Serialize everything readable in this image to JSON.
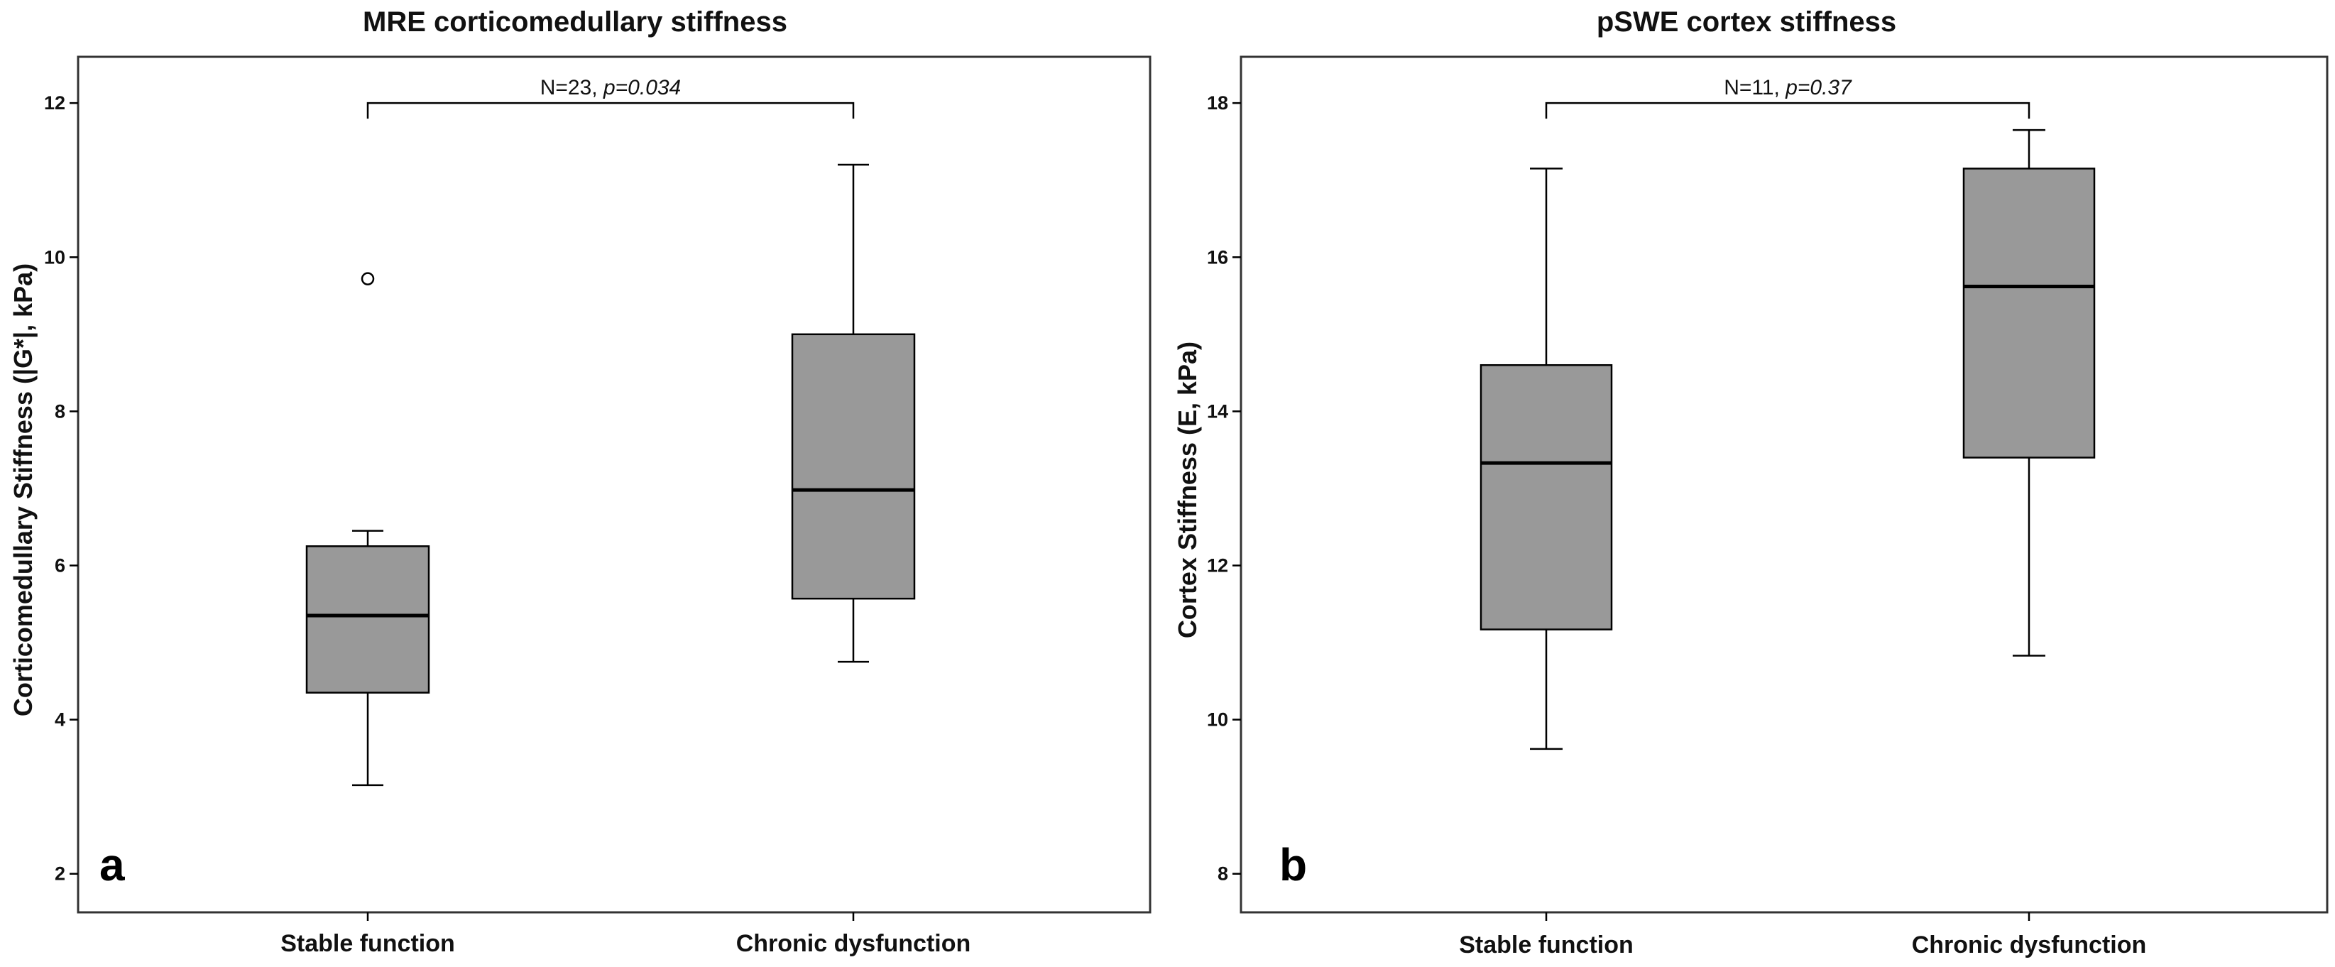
{
  "chart_data": [
    {
      "type": "boxplot",
      "panel_label": "a",
      "title": "MRE corticomedullary stiffness",
      "ylabel": "Corticomedullary Stiffness (|G*|, kPa)",
      "xlabel": "",
      "ylim": [
        1.5,
        12.6
      ],
      "yticks": [
        2,
        4,
        6,
        8,
        10,
        12
      ],
      "categories": [
        "Stable function",
        "Chronic dysfunction"
      ],
      "boxes": [
        {
          "category": "Stable function",
          "whisker_low": 3.15,
          "q1": 4.35,
          "median": 5.35,
          "q3": 6.25,
          "whisker_high": 6.45,
          "outliers": [
            9.72
          ]
        },
        {
          "category": "Chronic dysfunction",
          "whisker_low": 4.75,
          "q1": 5.57,
          "median": 6.98,
          "q3": 9.0,
          "whisker_high": 11.2,
          "outliers": []
        }
      ],
      "annotation": {
        "n_text": "N=23, ",
        "p_text": "p=0.034",
        "bracket_y": 12.0
      }
    },
    {
      "type": "boxplot",
      "panel_label": "b",
      "title": "pSWE cortex stiffness",
      "ylabel": "Cortex Stiffness (E, kPa)",
      "xlabel": "",
      "ylim": [
        7.5,
        18.6
      ],
      "yticks": [
        8,
        10,
        12,
        14,
        16,
        18
      ],
      "categories": [
        "Stable function",
        "Chronic dysfunction"
      ],
      "boxes": [
        {
          "category": "Stable function",
          "whisker_low": 9.62,
          "q1": 11.17,
          "median": 13.33,
          "q3": 14.6,
          "whisker_high": 17.15,
          "outliers": []
        },
        {
          "category": "Chronic dysfunction",
          "whisker_low": 10.83,
          "q1": 13.4,
          "median": 15.62,
          "q3": 17.15,
          "whisker_high": 17.65,
          "outliers": []
        }
      ],
      "annotation": {
        "n_text": "N=11, ",
        "p_text": "p=0.37",
        "bracket_y": 18.0
      }
    }
  ],
  "colors": {
    "box_fill": "#999999",
    "stroke": "#000000",
    "frame": "#333333"
  }
}
